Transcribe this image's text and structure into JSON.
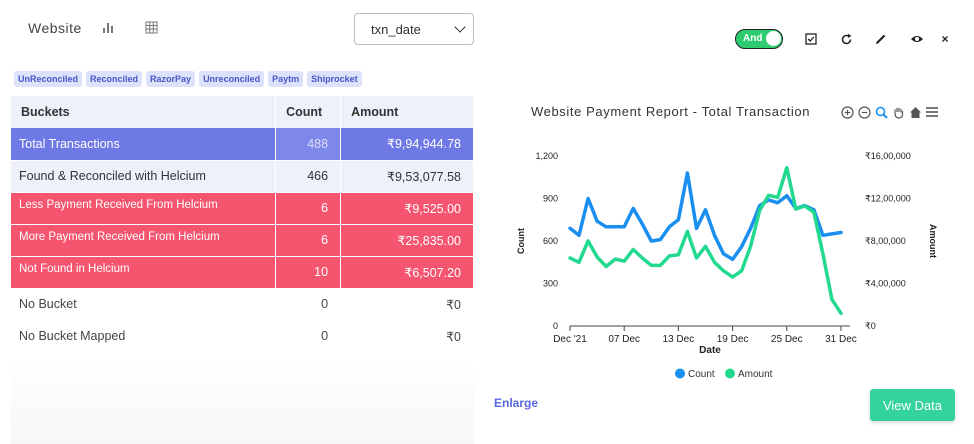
{
  "header": {
    "title": "Website",
    "bar_icon": "bar-chart-icon",
    "table_icon": "table-grid-icon",
    "date_field": "txn_date"
  },
  "toolbar": {
    "toggle_label": "And",
    "toggle_color": "#2ecc71",
    "icons": [
      "checkbox-icon",
      "refresh-icon",
      "pencil-icon",
      "eye-icon",
      "close-icon"
    ]
  },
  "tags": [
    "UnReconciled",
    "Reconciled",
    "RazorPay",
    "Unreconciled",
    "Paytm",
    "Shiprocket"
  ],
  "table": {
    "headers": [
      "Buckets",
      "Count",
      "Amount"
    ],
    "rows": [
      {
        "bucket": "Total Transactions",
        "count": "488",
        "amount": "₹9,94,944.78",
        "style": "total"
      },
      {
        "bucket": "Found & Reconciled with Helcium",
        "count": "466",
        "amount": "₹9,53,077.58",
        "style": "found"
      },
      {
        "bucket": "Less Payment Received From Helcium",
        "count": "6",
        "amount": "₹9,525.00",
        "style": "red"
      },
      {
        "bucket": "More Payment Received From Helcium",
        "count": "6",
        "amount": "₹25,835.00",
        "style": "red"
      },
      {
        "bucket": "Not Found in Helcium",
        "count": "10",
        "amount": "₹6,507.20",
        "style": "red"
      },
      {
        "bucket": "No Bucket",
        "count": "0",
        "amount": "₹0",
        "style": "plain"
      },
      {
        "bucket": "No Bucket Mapped",
        "count": "0",
        "amount": "₹0",
        "style": "plain"
      }
    ]
  },
  "chart": {
    "title": "Website Payment Report - Total Transaction",
    "tool_icons": [
      "zoom-in-icon",
      "zoom-out-icon",
      "zoom-select-icon",
      "pan-hand-icon",
      "home-reset-icon",
      "menu-icon"
    ]
  },
  "chart_data": {
    "type": "line",
    "title": "Website Payment Report - Total Transaction",
    "xlabel": "Date",
    "ylabel": "Count",
    "y2label": "Amount",
    "x_ticks": [
      "Dec '21",
      "07 Dec",
      "13 Dec",
      "19 Dec",
      "25 Dec",
      "31 Dec"
    ],
    "y_ticks": [
      "0",
      "300",
      "600",
      "900",
      "1,200"
    ],
    "y2_ticks": [
      "₹0",
      "₹4,00,000",
      "₹8,00,000",
      "₹12,00,000",
      "₹16,00,000"
    ],
    "ylim": [
      0,
      1200
    ],
    "y2lim": [
      0,
      1600000
    ],
    "x": [
      1,
      2,
      3,
      4,
      5,
      6,
      7,
      8,
      9,
      10,
      11,
      12,
      13,
      14,
      15,
      16,
      17,
      18,
      19,
      20,
      21,
      22,
      23,
      24,
      25,
      26,
      27,
      28,
      29,
      30,
      31,
      32
    ],
    "series": [
      {
        "name": "Count",
        "axis": "left",
        "color": "#1a8ff0",
        "values": [
          690,
          640,
          900,
          740,
          700,
          700,
          700,
          830,
          720,
          600,
          610,
          700,
          750,
          1080,
          690,
          820,
          640,
          510,
          470,
          560,
          690,
          850,
          890,
          870,
          920,
          830,
          850,
          820,
          640,
          650,
          660,
          null
        ]
      },
      {
        "name": "Amount",
        "axis": "right",
        "color": "#22d98f",
        "values": [
          640000,
          600000,
          800000,
          650000,
          560000,
          630000,
          610000,
          720000,
          640000,
          570000,
          570000,
          660000,
          670000,
          890000,
          640000,
          750000,
          600000,
          520000,
          460000,
          520000,
          750000,
          1090000,
          1230000,
          1210000,
          1490000,
          1100000,
          1130000,
          1070000,
          680000,
          250000,
          120000,
          null
        ]
      }
    ],
    "legend": "bottom",
    "grid": false
  },
  "footer": {
    "enlarge_label": "Enlarge",
    "view_button": "View Data",
    "view_color": "#34d39b"
  }
}
